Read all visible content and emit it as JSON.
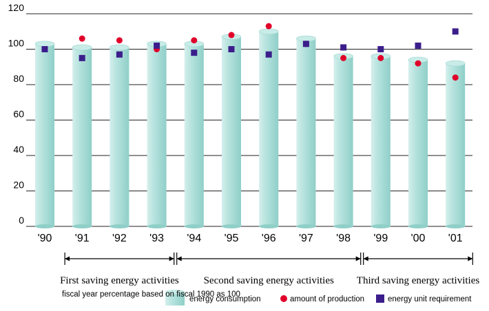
{
  "chart_data": {
    "type": "bar",
    "categories": [
      "'90",
      "'91",
      "'92",
      "'93",
      "'94",
      "'95",
      "'96",
      "'97",
      "'98",
      "'99",
      "'00",
      "'01"
    ],
    "ylim": [
      0,
      120
    ],
    "yticks": [
      0,
      20,
      40,
      60,
      80,
      100,
      120
    ],
    "grid": true,
    "series": [
      {
        "name": "energy consumption",
        "kind": "bar",
        "color": "#a9dbd6",
        "values": [
          103,
          101,
          101,
          103,
          103,
          107,
          110,
          106,
          96,
          96,
          94,
          92
        ]
      },
      {
        "name": "amount of production",
        "kind": "marker-circle",
        "color": "#e0002a",
        "values": [
          100,
          106,
          105,
          100,
          105,
          108,
          113,
          103,
          95,
          95,
          92,
          84
        ]
      },
      {
        "name": "energy unit requirement",
        "kind": "marker-square",
        "color": "#3b1e8c",
        "values": [
          100,
          95,
          97,
          102,
          98,
          100,
          97,
          103,
          101,
          100,
          102,
          110
        ]
      }
    ],
    "periods": [
      {
        "label": "First saving energy activities",
        "from": "'91",
        "to": "'93"
      },
      {
        "label": "Second saving energy activities",
        "from": "'94",
        "to": "'98"
      },
      {
        "label": "Third saving energy activities",
        "from": "'99",
        "to": "'01"
      }
    ],
    "note": "fiscal year percentage based on fiscal 1990 as 100"
  }
}
